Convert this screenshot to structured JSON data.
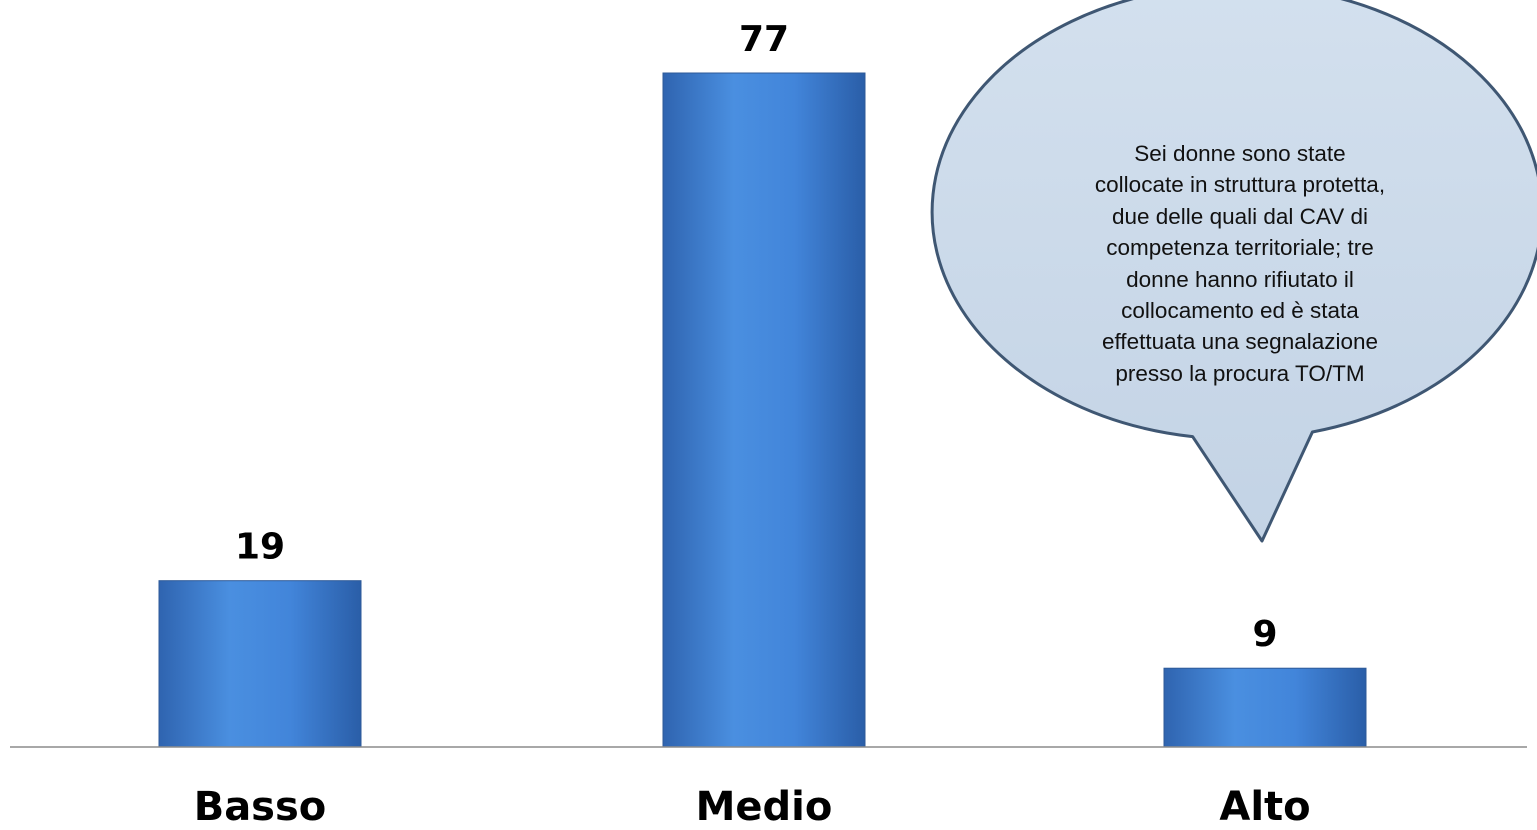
{
  "chart_data": {
    "type": "bar",
    "categories": [
      "Basso",
      "Medio",
      "Alto"
    ],
    "values": [
      19,
      77,
      9
    ],
    "title": "",
    "xlabel": "",
    "ylabel": "",
    "ylim": [
      0,
      77
    ],
    "grid": false,
    "legend": "none",
    "data_labels": true,
    "bar_color": "#3F7FD4",
    "annotations": [
      {
        "type": "speech-bubble",
        "target": "Alto",
        "lines": [
          "Sei  donne sono  state",
          "collocate in struttura protetta,",
          "due delle quali dal CAV di",
          "competenza territoriale; tre",
          "donne hanno rifiutato il",
          "collocamento ed è stata",
          "effettuata una segnalazione",
          "presso la procura TO/TM"
        ],
        "fill_color": "#C9D8E8",
        "border_color": "#3F5773"
      }
    ]
  }
}
